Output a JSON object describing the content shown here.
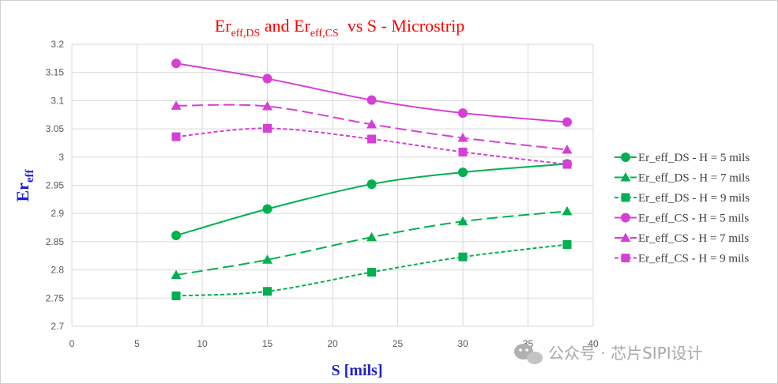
{
  "chart_data": {
    "type": "line",
    "title_parts": {
      "a": "Er",
      "a_sub": "eff,DS",
      "mid": " and ",
      "b": "Er",
      "b_sub": "eff,CS",
      "tail": "  vs S - Microstrip"
    },
    "xlabel": "S [mils]",
    "ylabel": {
      "main": "Er",
      "sub": "eff"
    },
    "xlim": [
      0,
      40
    ],
    "ylim": [
      2.7,
      3.2
    ],
    "xticks": [
      "0",
      "5",
      "10",
      "15",
      "20",
      "25",
      "30",
      "35",
      "40"
    ],
    "yticks": [
      "2.7",
      "2.75",
      "2.8",
      "2.85",
      "2.9",
      "2.95",
      "3",
      "3.05",
      "3.1",
      "3.15",
      "3.2"
    ],
    "grid": true,
    "legend_position": "right",
    "x": [
      8,
      15,
      23,
      30,
      38
    ],
    "series": [
      {
        "name": "Er_eff_DS - H = 5 mils",
        "color": "#00b050",
        "marker": "circle",
        "dash": "solid",
        "values": [
          2.861,
          2.908,
          2.952,
          2.973,
          2.988
        ]
      },
      {
        "name": "Er_eff_DS - H = 7 mils",
        "color": "#00b050",
        "marker": "triangle",
        "dash": "long",
        "values": [
          2.791,
          2.818,
          2.858,
          2.886,
          2.904
        ]
      },
      {
        "name": "Er_eff_DS - H = 9 mils",
        "color": "#00b050",
        "marker": "square",
        "dash": "short",
        "values": [
          2.754,
          2.762,
          2.796,
          2.823,
          2.845
        ]
      },
      {
        "name": "Er_eff_CS - H = 5 mils",
        "color": "#d63fd6",
        "marker": "circle",
        "dash": "solid",
        "values": [
          3.166,
          3.139,
          3.101,
          3.078,
          3.062
        ]
      },
      {
        "name": "Er_eff_CS - H = 7 mils",
        "color": "#d63fd6",
        "marker": "triangle",
        "dash": "long",
        "values": [
          3.091,
          3.09,
          3.058,
          3.034,
          3.013
        ]
      },
      {
        "name": "Er_eff_CS - H = 9 mils",
        "color": "#d63fd6",
        "marker": "square",
        "dash": "short",
        "values": [
          3.036,
          3.051,
          3.032,
          3.009,
          2.987
        ]
      }
    ]
  },
  "watermark": {
    "icon": "wechat-icon",
    "text": "公众号 · 芯片SIPI设计"
  }
}
